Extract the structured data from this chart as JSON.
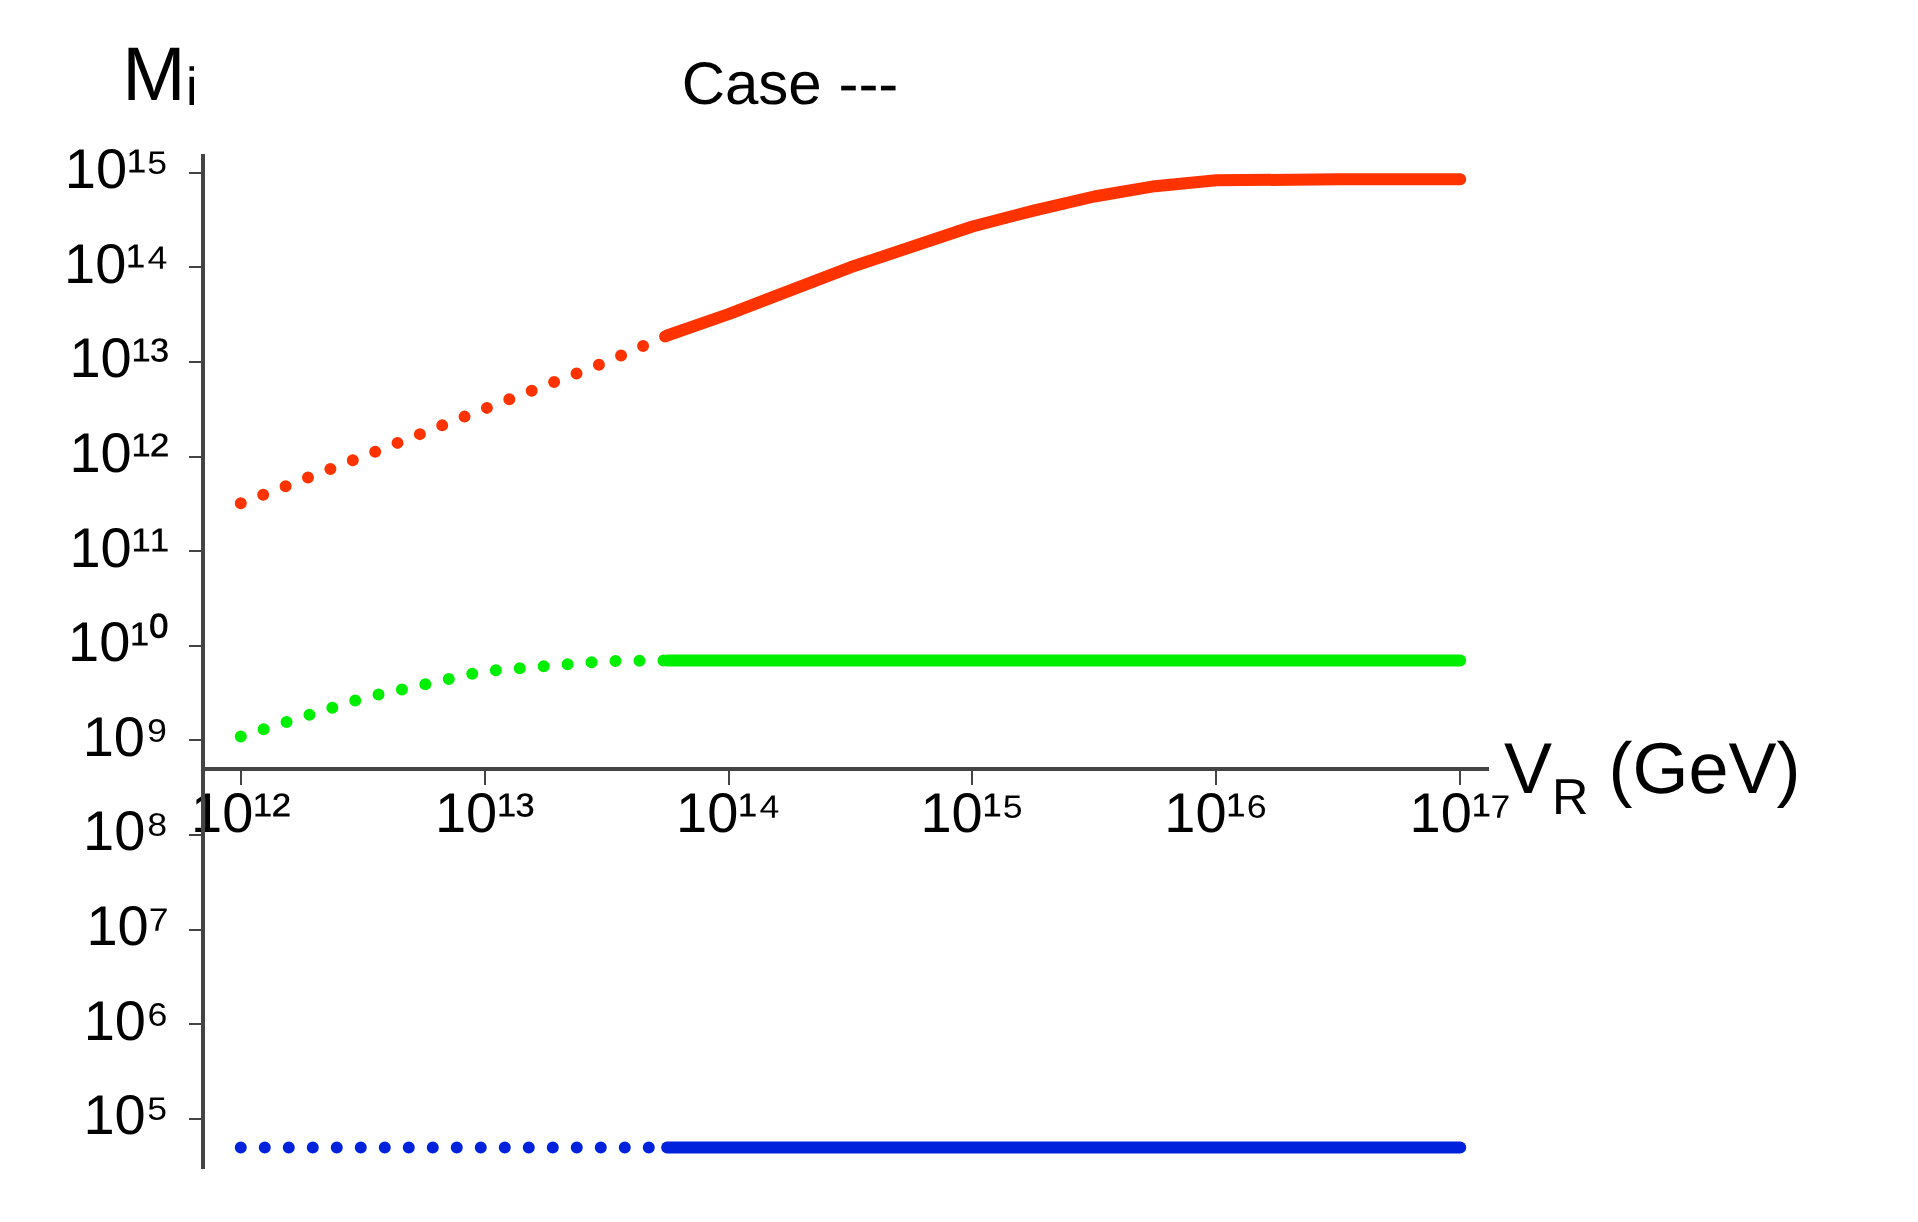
{
  "chart_data": {
    "type": "line",
    "title": "Case ---",
    "xlabel": "V$_{R}$ (GeV)",
    "ylabel": "Mᵢ",
    "log": "xy",
    "xlim": [
      700000000000.0,
      1.3e+17
    ],
    "ylim": [
      30000.0,
      1500000000000000.0
    ],
    "xticks": [
      {
        "value": 1000000000000.0,
        "label": "10¹²"
      },
      {
        "value": 10000000000000.0,
        "label": "10¹³"
      },
      {
        "value": 100000000000000.0,
        "label": "10¹⁴"
      },
      {
        "value": 1000000000000000.0,
        "label": "10¹⁵"
      },
      {
        "value": 1e+16,
        "label": "10¹⁶"
      },
      {
        "value": 1e+17,
        "label": "10¹⁷"
      }
    ],
    "yticks": [
      {
        "value": 100000.0,
        "label": "10⁵"
      },
      {
        "value": 1000000.0,
        "label": "10⁶"
      },
      {
        "value": 10000000.0,
        "label": "10⁷"
      },
      {
        "value": 100000000.0,
        "label": "10⁸"
      },
      {
        "value": 1000000000.0,
        "label": "10⁹"
      },
      {
        "value": 10000000000.0,
        "label": "10¹⁰"
      },
      {
        "value": 100000000000.0,
        "label": "10¹¹"
      },
      {
        "value": 1000000000000.0,
        "label": "10¹²"
      },
      {
        "value": 10000000000000.0,
        "label": "10¹³"
      },
      {
        "value": 100000000000000.0,
        "label": "10¹⁴"
      },
      {
        "value": 1000000000000000.0,
        "label": "10¹⁵"
      }
    ],
    "series": [
      {
        "color": "#ff3300",
        "line_style": "dotted",
        "x": [
          1000000000000.0,
          3160000000000.0,
          10000000000000.0,
          31600000000000.0,
          56000000000000.0
        ],
        "values": [
          320000000000.0,
          1000000000000.0,
          3200000000000.0,
          10000000000000.0,
          19000000000000.0
        ]
      },
      {
        "color": "#ff3300",
        "line_style": "solid",
        "x": [
          56000000000000.0,
          100000000000000.0,
          316000000000000.0,
          1000000000000000.0,
          1800000000000000.0,
          3160000000000000.0,
          5600000000000000.0,
          1e+16,
          3.16e+16,
          1e+17
        ],
        "values": [
          19000000000000.0,
          32000000000000.0,
          100000000000000.0,
          270000000000000.0,
          400000000000000.0,
          560000000000000.0,
          720000000000000.0,
          830000000000000.0,
          850000000000000.0,
          850000000000000.0
        ]
      },
      {
        "color": "#00ee00",
        "line_style": "dotted",
        "x": [
          1000000000000.0,
          3160000000000.0,
          10000000000000.0,
          31600000000000.0,
          56000000000000.0
        ],
        "values": [
          1100000000.0,
          2800000000.0,
          5400000000.0,
          6900000000.0,
          7000000000.0
        ]
      },
      {
        "color": "#00ee00",
        "line_style": "solid",
        "x": [
          56000000000000.0,
          1e+17
        ],
        "values": [
          7000000000.0,
          7000000000.0
        ]
      },
      {
        "color": "#0022dd",
        "line_style": "dotted",
        "x": [
          1000000000000.0,
          56000000000000.0
        ],
        "values": [
          50000.0,
          50000.0
        ]
      },
      {
        "color": "#0022dd",
        "line_style": "solid",
        "x": [
          56000000000000.0,
          1e+17
        ],
        "values": [
          50000.0,
          50000.0
        ]
      }
    ]
  }
}
